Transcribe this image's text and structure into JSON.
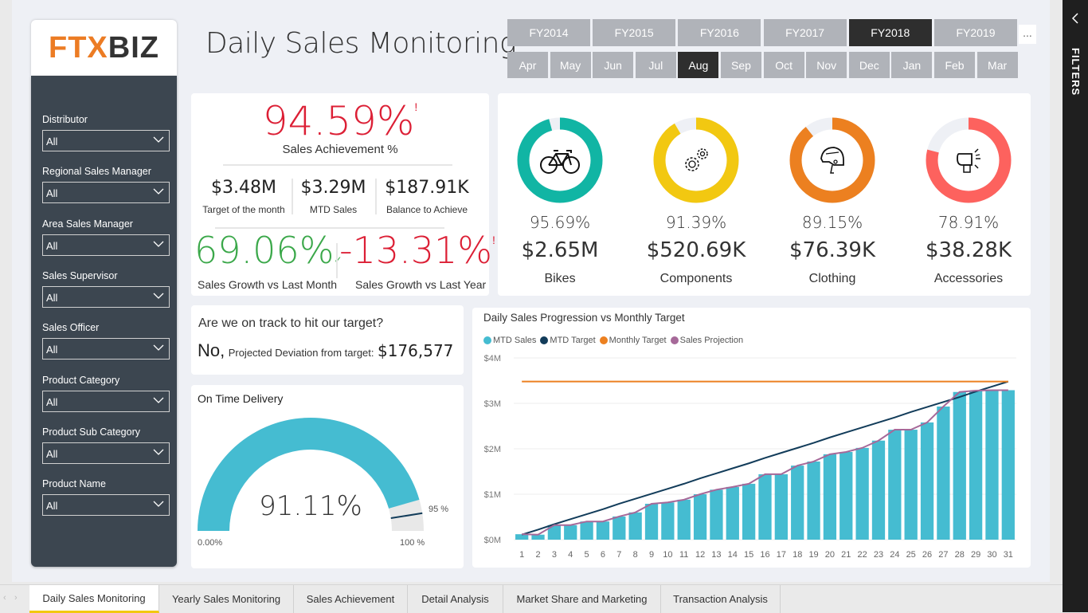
{
  "logo": {
    "part1": "FTX",
    "part2": "BIZ"
  },
  "page_title": "Daily Sales Monitoring",
  "slicers": [
    {
      "label": "Distributor",
      "value": "All"
    },
    {
      "label": "Regional Sales Manager",
      "value": "All"
    },
    {
      "label": "Area Sales Manager",
      "value": "All"
    },
    {
      "label": "Sales Supervisor",
      "value": "All"
    },
    {
      "label": "Sales Officer",
      "value": "All"
    },
    {
      "label": "Product Category",
      "value": "All"
    },
    {
      "label": "Product Sub Category",
      "value": "All"
    },
    {
      "label": "Product Name",
      "value": "All"
    }
  ],
  "fiscal_years": {
    "items": [
      "FY2014",
      "FY2015",
      "FY2016",
      "FY2017",
      "FY2018",
      "FY2019"
    ],
    "selected": "FY2018",
    "more_label": "..."
  },
  "months": {
    "items": [
      "Apr",
      "May",
      "Jun",
      "Jul",
      "Aug",
      "Sep",
      "Oct",
      "Nov",
      "Dec",
      "Jan",
      "Feb",
      "Mar"
    ],
    "selected": "Aug"
  },
  "kpi": {
    "achievement": {
      "value": "94.59%",
      "flag": "!",
      "label": "Sales Achievement %"
    },
    "target_month": {
      "value": "$3.48M",
      "label": "Target of the month"
    },
    "mtd_sales": {
      "value": "$3.29M",
      "label": "MTD Sales"
    },
    "balance": {
      "value": "$187.91K",
      "label": "Balance to Achieve"
    },
    "growth_month": {
      "value": "69.06%",
      "flag": "✓",
      "label": "Sales Growth vs Last Month"
    },
    "growth_year": {
      "value": "-13.31%",
      "flag": "!",
      "label": "Sales Growth vs Last Year"
    }
  },
  "categories": [
    {
      "name": "Bikes",
      "pct": "95.69%",
      "pct_value": 95.69,
      "value": "$2.65M",
      "color": "#11b5a4",
      "icon": "bicycle-icon"
    },
    {
      "name": "Components",
      "pct": "91.39%",
      "pct_value": 91.39,
      "value": "$520.69K",
      "color": "#f2c811",
      "icon": "gears-icon"
    },
    {
      "name": "Clothing",
      "pct": "89.15%",
      "pct_value": 89.15,
      "value": "$76.39K",
      "color": "#ec8020",
      "icon": "helmet-icon"
    },
    {
      "name": "Accessories",
      "pct": "78.91%",
      "pct_value": 78.91,
      "value": "$38.28K",
      "color": "#fd625e",
      "icon": "bike-light-icon"
    }
  ],
  "on_track": {
    "question": "Are we on track to hit our target?",
    "answer": "No,",
    "deviation_label": "Projected Deviation from target:",
    "deviation_value": "$176,577"
  },
  "gauge": {
    "title": "On Time Delivery",
    "value_label": "91.11%",
    "value": 91.11,
    "min_label": "0.00%",
    "max_label": "100 %",
    "target_label": "95 %",
    "target": 95,
    "fill_color": "#45bcd1"
  },
  "chart_data": {
    "type": "bar",
    "title": "Daily Sales Progression vs Monthly Target",
    "xlabel": "",
    "ylabel": "",
    "categories": [
      "1",
      "2",
      "3",
      "4",
      "5",
      "6",
      "7",
      "8",
      "9",
      "10",
      "11",
      "12",
      "13",
      "14",
      "15",
      "16",
      "17",
      "18",
      "19",
      "20",
      "21",
      "22",
      "23",
      "24",
      "25",
      "26",
      "27",
      "28",
      "29",
      "30",
      "31"
    ],
    "ylim": [
      0,
      4
    ],
    "yticks": [
      "$0M",
      "$1M",
      "$2M",
      "$3M",
      "$4M"
    ],
    "grid": true,
    "legend_position": "top-left",
    "series": [
      {
        "name": "MTD Sales",
        "type": "bar",
        "color": "#45bcd1",
        "values": [
          0.12,
          0.11,
          0.32,
          0.32,
          0.4,
          0.4,
          0.51,
          0.6,
          0.79,
          0.82,
          0.88,
          1.0,
          1.1,
          1.16,
          1.23,
          1.44,
          1.44,
          1.63,
          1.72,
          1.88,
          1.93,
          2.02,
          2.18,
          2.42,
          2.42,
          2.58,
          2.93,
          3.25,
          3.28,
          3.29,
          3.29
        ]
      },
      {
        "name": "MTD Target",
        "type": "line",
        "color": "#123c5a",
        "values": [
          0.11,
          0.22,
          0.34,
          0.45,
          0.56,
          0.67,
          0.79,
          0.9,
          1.01,
          1.12,
          1.23,
          1.35,
          1.46,
          1.57,
          1.68,
          1.8,
          1.91,
          2.02,
          2.13,
          2.25,
          2.36,
          2.47,
          2.58,
          2.69,
          2.81,
          2.92,
          3.03,
          3.14,
          3.26,
          3.37,
          3.48
        ]
      },
      {
        "name": "Monthly Target",
        "type": "line",
        "color": "#ec8020",
        "values": [
          3.48,
          3.48,
          3.48,
          3.48,
          3.48,
          3.48,
          3.48,
          3.48,
          3.48,
          3.48,
          3.48,
          3.48,
          3.48,
          3.48,
          3.48,
          3.48,
          3.48,
          3.48,
          3.48,
          3.48,
          3.48,
          3.48,
          3.48,
          3.48,
          3.48,
          3.48,
          3.48,
          3.48,
          3.48,
          3.48,
          3.48
        ]
      },
      {
        "name": "Sales Projection",
        "type": "line",
        "color": "#a66999",
        "values": [
          0.12,
          0.11,
          0.32,
          0.32,
          0.4,
          0.4,
          0.51,
          0.6,
          0.79,
          0.82,
          0.88,
          1.0,
          1.1,
          1.16,
          1.23,
          1.44,
          1.44,
          1.63,
          1.72,
          1.88,
          1.93,
          2.02,
          2.18,
          2.42,
          2.42,
          2.58,
          2.93,
          3.25,
          3.28,
          3.29,
          3.29
        ]
      }
    ]
  },
  "tabs": [
    {
      "label": "Daily Sales Monitoring",
      "active": true
    },
    {
      "label": "Yearly Sales Monitoring",
      "active": false
    },
    {
      "label": "Sales Achievement",
      "active": false
    },
    {
      "label": "Detail Analysis",
      "active": false
    },
    {
      "label": "Market Share and Marketing",
      "active": false
    },
    {
      "label": "Transaction Analysis",
      "active": false
    }
  ],
  "filters_pane": {
    "label": "FILTERS"
  }
}
